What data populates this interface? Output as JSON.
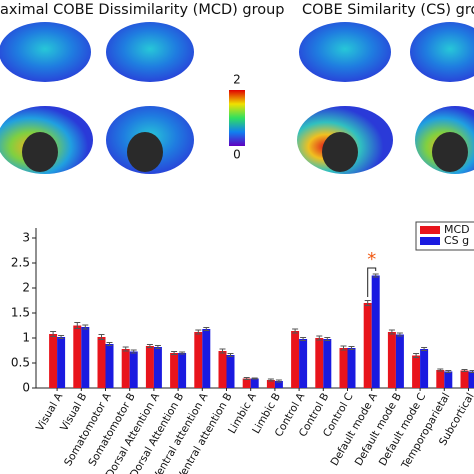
{
  "brain_panel": {
    "titles": [
      "aximal COBE Dissimilarity (MCD) group",
      "COBE Similarity (CS) grou"
    ],
    "colorbar_ticks": [
      2,
      0
    ]
  },
  "chart_data": {
    "type": "bar",
    "categories": [
      "Visual A",
      "Visual B",
      "Somatomotor A",
      "Somatomotor B",
      "Dorsal Attention A",
      "Dorsal Attention B",
      "Ventral attention A",
      "Ventral attention B",
      "Limbic A",
      "Limbic B",
      "Control A",
      "Control B",
      "Control C",
      "Default mode A",
      "Default mode B",
      "Default mode C",
      "Temporoparietal",
      "Subcortical"
    ],
    "series": [
      {
        "name": "MCD",
        "color": "#e8141c",
        "values": [
          1.08,
          1.25,
          1.02,
          0.78,
          0.84,
          0.7,
          1.12,
          0.74,
          0.19,
          0.16,
          1.14,
          1.0,
          0.8,
          1.7,
          1.12,
          0.65,
          0.36,
          0.35
        ],
        "errors": [
          0.05,
          0.06,
          0.05,
          0.04,
          0.03,
          0.03,
          0.04,
          0.04,
          0.02,
          0.02,
          0.04,
          0.04,
          0.04,
          0.05,
          0.04,
          0.04,
          0.02,
          0.02
        ]
      },
      {
        "name": "CS g",
        "color": "#1a1ae0",
        "values": [
          1.02,
          1.22,
          0.88,
          0.73,
          0.82,
          0.7,
          1.18,
          0.66,
          0.19,
          0.14,
          0.98,
          0.98,
          0.8,
          2.25,
          1.07,
          0.78,
          0.33,
          0.33
        ],
        "errors": [
          0.03,
          0.04,
          0.03,
          0.03,
          0.03,
          0.02,
          0.03,
          0.03,
          0.01,
          0.02,
          0.03,
          0.03,
          0.03,
          0.03,
          0.03,
          0.03,
          0.02,
          0.02
        ]
      }
    ],
    "annotation": "*",
    "ylim": [
      0,
      3.2
    ],
    "yticks": [
      0,
      0.5,
      1,
      1.5,
      2,
      2.5,
      3
    ]
  }
}
